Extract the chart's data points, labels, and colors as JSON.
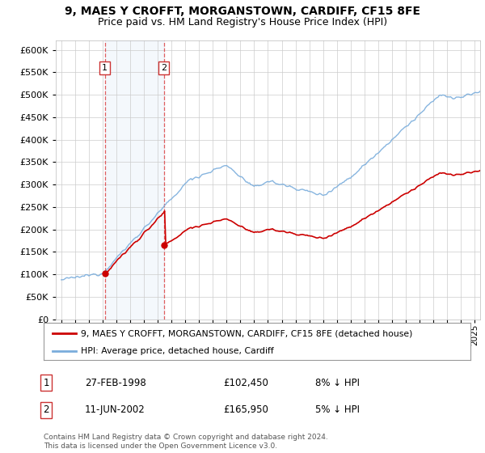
{
  "title1": "9, MAES Y CROFFT, MORGANSTOWN, CARDIFF, CF15 8FE",
  "title2": "Price paid vs. HM Land Registry's House Price Index (HPI)",
  "legend_line1": "9, MAES Y CROFFT, MORGANSTOWN, CARDIFF, CF15 8FE (detached house)",
  "legend_line2": "HPI: Average price, detached house, Cardiff",
  "footer": "Contains HM Land Registry data © Crown copyright and database right 2024.\nThis data is licensed under the Open Government Licence v3.0.",
  "sale1_date": "27-FEB-1998",
  "sale1_price": "£102,450",
  "sale1_hpi": "8% ↓ HPI",
  "sale2_date": "11-JUN-2002",
  "sale2_price": "£165,950",
  "sale2_hpi": "5% ↓ HPI",
  "sale1_year": 1998.15,
  "sale1_value": 102450,
  "sale2_year": 2002.44,
  "sale2_value": 165950,
  "hpi_color": "#7aaddc",
  "price_color": "#cc0000",
  "background_color": "#ffffff",
  "grid_color": "#cccccc",
  "ylim": [
    0,
    620000
  ],
  "yticks": [
    0,
    50000,
    100000,
    150000,
    200000,
    250000,
    300000,
    350000,
    400000,
    450000,
    500000,
    550000,
    600000
  ],
  "xlim_start": 1994.6,
  "xlim_end": 2025.4
}
